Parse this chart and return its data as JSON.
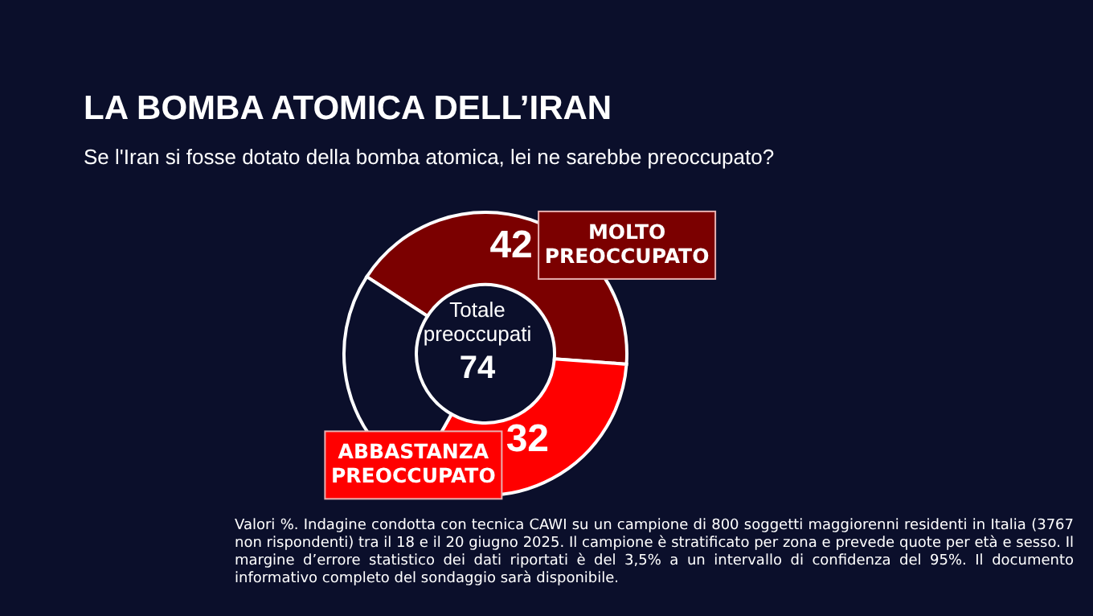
{
  "chart_data": {
    "type": "donut",
    "title": "LA BOMBA ATOMICA DELL’IRAN",
    "subtitle": "Se l'Iran si fosse dotato della bomba atomica, lei ne sarebbe preoccupato?",
    "categories": [
      "MOLTO PREOCCUPATO",
      "ABBASTANZA PREOCCUPATO",
      null
    ],
    "values": [
      42,
      32,
      26
    ],
    "colors": [
      "#7b0000",
      "#ff0000",
      "#0b0f2b"
    ],
    "value_labels": [
      "42",
      "32",
      null
    ],
    "legend": false,
    "annotations": [
      "Totale preoccupati",
      "74",
      "Valori %. Indagine condotta con tecnica CAWI su un campione di 800 soggetti maggiorenni residenti in Italia (3767 non rispondenti) tra il 18 e il 20 giugno 2025. Il campione è stratificato per zona e prevede quote per età e sesso. Il margine d’errore statistico dei dati riportati è del 3,5% a un intervallo di confidenza del 95%. Il documento informativo completo del sondaggio sarà disponibile."
    ]
  }
}
